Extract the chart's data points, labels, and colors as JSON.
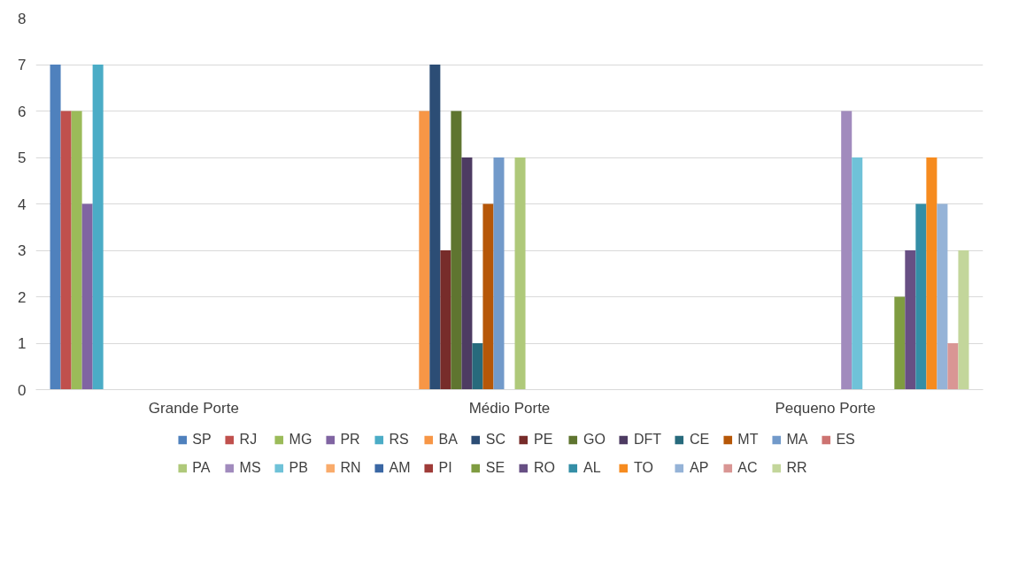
{
  "chart_data": {
    "type": "bar",
    "categories": [
      "Grande Porte",
      "Médio Porte",
      "Pequeno Porte"
    ],
    "ylim": [
      0,
      8
    ],
    "yticks": [
      0,
      1,
      2,
      3,
      4,
      5,
      6,
      7,
      8
    ],
    "grid": "y",
    "legend": "bottom",
    "series": [
      {
        "name": "SP",
        "color": "#4f81bd",
        "values": [
          7,
          null,
          null
        ]
      },
      {
        "name": "RJ",
        "color": "#c0504d",
        "values": [
          6,
          null,
          null
        ]
      },
      {
        "name": "MG",
        "color": "#9bbb59",
        "values": [
          6,
          null,
          null
        ]
      },
      {
        "name": "PR",
        "color": "#8064a2",
        "values": [
          4,
          null,
          null
        ]
      },
      {
        "name": "RS",
        "color": "#4bacc6",
        "values": [
          7,
          null,
          null
        ]
      },
      {
        "name": "BA",
        "color": "#f79646",
        "values": [
          null,
          6,
          null
        ]
      },
      {
        "name": "SC",
        "color": "#2c4d75",
        "values": [
          null,
          7,
          null
        ]
      },
      {
        "name": "PE",
        "color": "#772c2a",
        "values": [
          null,
          3,
          null
        ]
      },
      {
        "name": "GO",
        "color": "#5f7530",
        "values": [
          null,
          6,
          null
        ]
      },
      {
        "name": "DFT",
        "color": "#4d3b62",
        "values": [
          null,
          5,
          null
        ]
      },
      {
        "name": "CE",
        "color": "#276a7c",
        "values": [
          null,
          1,
          null
        ]
      },
      {
        "name": "MT",
        "color": "#b65708",
        "values": [
          null,
          4,
          null
        ]
      },
      {
        "name": "MA",
        "color": "#729aca",
        "values": [
          null,
          5,
          null
        ]
      },
      {
        "name": "ES",
        "color": "#cd7371",
        "values": [
          null,
          null,
          null
        ]
      },
      {
        "name": "PA",
        "color": "#afc97a",
        "values": [
          null,
          5,
          null
        ]
      },
      {
        "name": "MS",
        "color": "#a18bbd",
        "values": [
          null,
          null,
          6
        ]
      },
      {
        "name": "PB",
        "color": "#6fc2d8",
        "values": [
          null,
          null,
          5
        ]
      },
      {
        "name": "RN",
        "color": "#f9ab6b",
        "values": [
          null,
          null,
          null
        ]
      },
      {
        "name": "AM",
        "color": "#3a67a4",
        "values": [
          null,
          null,
          null
        ]
      },
      {
        "name": "PI",
        "color": "#9f3b38",
        "values": [
          null,
          null,
          null
        ]
      },
      {
        "name": "SE",
        "color": "#7f9c41",
        "values": [
          null,
          null,
          2
        ]
      },
      {
        "name": "RO",
        "color": "#674f84",
        "values": [
          null,
          null,
          3
        ]
      },
      {
        "name": "AL",
        "color": "#348ea6",
        "values": [
          null,
          null,
          4
        ]
      },
      {
        "name": "TO",
        "color": "#f68b1f",
        "values": [
          null,
          null,
          5
        ]
      },
      {
        "name": "AP",
        "color": "#95b3d7",
        "values": [
          null,
          null,
          4
        ]
      },
      {
        "name": "AC",
        "color": "#d99694",
        "values": [
          null,
          null,
          1
        ]
      },
      {
        "name": "RR",
        "color": "#c3d69b",
        "values": [
          null,
          null,
          3
        ]
      }
    ]
  }
}
